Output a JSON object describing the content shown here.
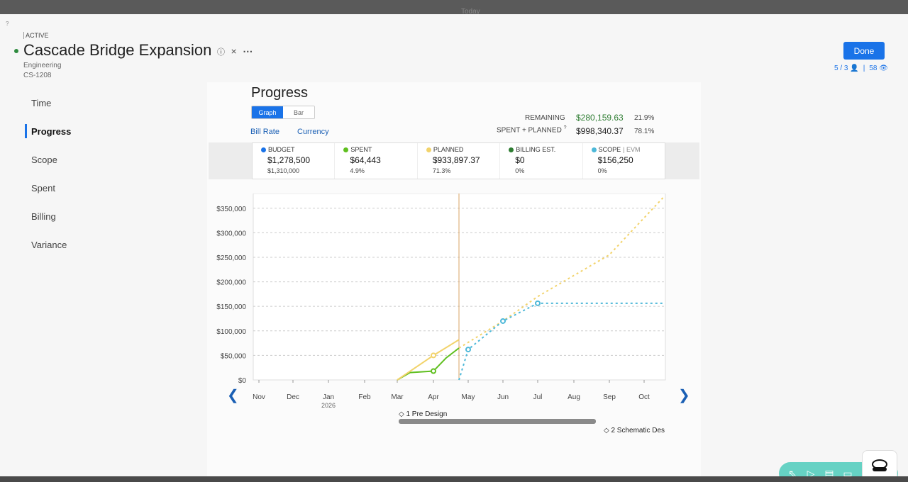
{
  "topbar": {
    "today_label": "Today"
  },
  "header": {
    "status": "ACTIVE",
    "title": "Cascade Bridge Expansion",
    "department": "Engineering",
    "code": "CS-1208",
    "done_label": "Done",
    "members_count": "5 / 3",
    "watchers_count": "58"
  },
  "nav": {
    "items": [
      {
        "label": "Time"
      },
      {
        "label": "Progress"
      },
      {
        "label": "Scope"
      },
      {
        "label": "Spent"
      },
      {
        "label": "Billing"
      },
      {
        "label": "Variance"
      }
    ]
  },
  "progress": {
    "title": "Progress",
    "view_graph": "Graph",
    "view_bar": "Bar",
    "link_bill_rate": "Bill Rate",
    "link_currency": "Currency",
    "remaining_label": "REMAINING",
    "remaining_value": "$280,159.63",
    "remaining_pct": "21.9%",
    "spent_planned_label": "SPENT + PLANNED",
    "spent_planned_value": "$998,340.37",
    "spent_planned_pct": "78.1%"
  },
  "legend": [
    {
      "label": "BUDGET",
      "color": "#1a73e8",
      "value": "$1,278,500",
      "sub": "$1,310,000"
    },
    {
      "label": "SPENT",
      "color": "#5fbf1f",
      "value": "$64,443",
      "sub": "4.9%"
    },
    {
      "label": "PLANNED",
      "color": "#f2d36b",
      "value": "$933,897.37",
      "sub": "71.3%"
    },
    {
      "label": "BILLING EST.",
      "color": "#2e7d32",
      "value": "$0",
      "sub": "0%"
    },
    {
      "label": "SCOPE",
      "extra": "| EVM",
      "color": "#4db8d8",
      "value": "$156,250",
      "sub": "0%"
    }
  ],
  "chart_data": {
    "type": "line",
    "x_ticks": [
      "Nov",
      "Dec",
      "Jan",
      "Feb",
      "Mar",
      "Apr",
      "May",
      "Jun",
      "Jul",
      "Aug",
      "Sep",
      "Oct"
    ],
    "x_year_label": "2026",
    "y_ticks": [
      "$0",
      "$50,000",
      "$100,000",
      "$150,000",
      "$200,000",
      "$250,000",
      "$300,000",
      "$350,000"
    ],
    "ylim": [
      0,
      380000
    ],
    "series": [
      {
        "name": "SPENT",
        "color": "#5fbf1f",
        "style": "solid",
        "points": [
          [
            "Mar",
            0
          ],
          [
            "Mar+",
            15000
          ],
          [
            "Apr",
            18000
          ],
          [
            "Apr+",
            45000
          ],
          [
            "May-",
            65000
          ]
        ]
      },
      {
        "name": "PLANNED",
        "color": "#f2d36b",
        "style": "solid",
        "points": [
          [
            "Mar",
            0
          ],
          [
            "Apr",
            50000
          ],
          [
            "May-",
            82000
          ]
        ]
      },
      {
        "name": "PLANNED",
        "color": "#f2d36b",
        "style": "dashed",
        "points": [
          [
            "May-",
            65000
          ],
          [
            "Jun",
            120000
          ],
          [
            "Jul",
            170000
          ],
          [
            "Sep",
            255000
          ],
          [
            "Oct+",
            375000
          ]
        ]
      },
      {
        "name": "SCOPE",
        "color": "#4db8d8",
        "style": "dashed",
        "points": [
          [
            "May-",
            0
          ],
          [
            "May",
            62000
          ],
          [
            "Jun",
            120000
          ],
          [
            "Jul",
            156250
          ],
          [
            "Oct+",
            156250
          ]
        ]
      }
    ],
    "today_marker": "May-",
    "phases": [
      {
        "index": "1",
        "label": "Pre Design"
      },
      {
        "index": "2",
        "label": "Schematic Des"
      }
    ]
  }
}
